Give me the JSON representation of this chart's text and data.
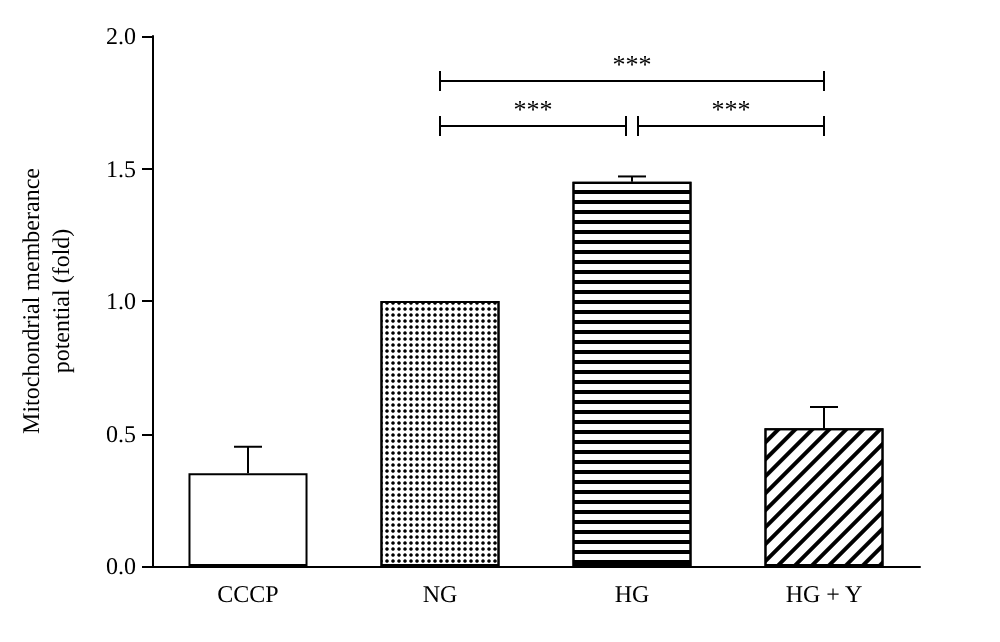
{
  "chart_data": {
    "type": "bar",
    "ylabel": "Mitochondrial memberance\npotential (fold)",
    "categories": [
      "CCCP",
      "NG",
      "HG",
      "HG + Y"
    ],
    "values": [
      0.35,
      1.0,
      1.45,
      0.52
    ],
    "colors": [
      "#ffffff",
      "#ffffff",
      "#ffffff",
      "#ffffff"
    ],
    "errors": [
      [
        0.35,
        0.45
      ],
      null,
      [
        1.45,
        1.47
      ],
      [
        0.52,
        0.6
      ]
    ],
    "ylim": [
      0,
      2
    ],
    "yticks": [
      {
        "value": 0,
        "label": "0.0"
      },
      {
        "value": 0.5,
        "label": "0.5"
      },
      {
        "value": 1,
        "label": "1.0"
      },
      {
        "value": 1.5,
        "label": "1.5"
      },
      {
        "value": 2,
        "label": "2.0"
      }
    ],
    "annotations": [
      "***",
      "***",
      "***"
    ],
    "grid": false
  }
}
